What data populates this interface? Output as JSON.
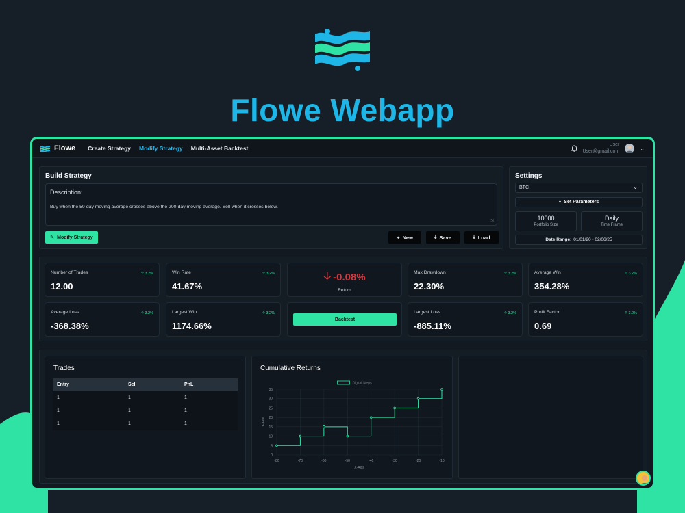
{
  "hero": {
    "title": "Flowe Webapp"
  },
  "colors": {
    "accent": "#2fe3a4",
    "brand": "#1db6e6",
    "negative": "#d9363e",
    "background": "#161e27"
  },
  "navbar": {
    "brand": "Flowe",
    "links": [
      "Create Strategy",
      "Modify Strategy",
      "Multi-Asset Backtest"
    ],
    "active_link": "Modify Strategy",
    "user_name": "User",
    "user_email": "User@gmail.com",
    "bell_icon": "bell-icon"
  },
  "build": {
    "title": "Build Strategy",
    "description_label": "Description:",
    "description_text": "Buy when the 50-day moving average crosses above the 200-day moving average. Sell when it crosses below.",
    "modify_button": "Modify Strategy",
    "new_button": "New",
    "save_button": "Save",
    "load_button": "Load"
  },
  "settings": {
    "title": "Settings",
    "asset": "BTC",
    "set_params_button": "Set Parameters",
    "portfolio_size_value": "10000",
    "portfolio_size_label": "Portfolio Size",
    "time_frame_value": "Daily",
    "time_frame_label": "Time Frame",
    "date_range_label": "Date Range:",
    "date_range_value": "01/01/20 - 02/06/25"
  },
  "stats": [
    {
      "label": "Number of Trades",
      "value": "12.00",
      "change": "3.2%"
    },
    {
      "label": "Win Rate",
      "value": "41.67%",
      "change": "3.2%"
    },
    {
      "label": "Max Drawdown",
      "value": "22.30%",
      "change": "3.2%"
    },
    {
      "label": "Average Win",
      "value": "354.28%",
      "change": "3.2%"
    },
    {
      "label": "Average Loss",
      "value": "-368.38%",
      "change": "3.2%"
    },
    {
      "label": "Largest Win",
      "value": "1174.66%",
      "change": "3.2%"
    },
    {
      "label": "Largest Loss",
      "value": "-885.11%",
      "change": "3.2%"
    },
    {
      "label": "Profit Factor",
      "value": "0.69",
      "change": "3.2%"
    }
  ],
  "return_card": {
    "value": "-0.08%",
    "label": "Return"
  },
  "backtest_button": "Backtest",
  "trades": {
    "title": "Trades",
    "columns": [
      "Entry",
      "Sell",
      "PnL"
    ],
    "rows": [
      [
        "1",
        "1",
        "1"
      ],
      [
        "1",
        "1",
        "1"
      ],
      [
        "1",
        "1",
        "1"
      ]
    ]
  },
  "cumulative": {
    "title": "Cumulative Returns"
  },
  "chart_data": {
    "type": "line",
    "step": true,
    "title": "Cumulative Returns",
    "xlabel": "X-Axis",
    "ylabel": "Y-Axis",
    "xlim": [
      -80,
      -10
    ],
    "ylim": [
      0,
      35
    ],
    "x_ticks": [
      "-80",
      "-70",
      "-60",
      "-50",
      "-40",
      "-30",
      "-20",
      "-10"
    ],
    "y_ticks": [
      "0",
      "5",
      "10",
      "15",
      "20",
      "25",
      "30",
      "35"
    ],
    "grid": true,
    "legend_placement": "top-center",
    "series": [
      {
        "name": "Digital Steps",
        "color": "#2fe3a4",
        "x": [
          -80,
          -70,
          -60,
          -50,
          -40,
          -30,
          -20,
          -10
        ],
        "y": [
          5,
          10,
          15,
          10,
          20,
          25,
          30,
          35
        ]
      }
    ]
  }
}
